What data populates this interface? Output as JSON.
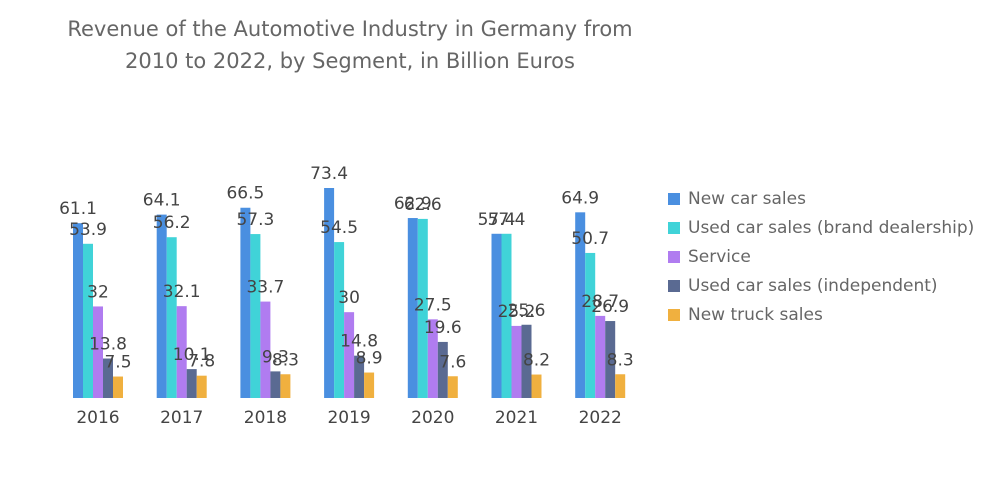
{
  "chart_data": {
    "type": "bar",
    "title": [
      "Revenue of the Automotive Industry in Germany from",
      "2010 to 2022, by Segment, in Billion Euros"
    ],
    "categories": [
      "2016",
      "2017",
      "2018",
      "2019",
      "2020",
      "2021",
      "2022"
    ],
    "series": [
      {
        "name": "New car sales",
        "color": "#4a8fe0",
        "values": [
          61.1,
          64.1,
          66.5,
          73.4,
          62.9,
          57.4,
          64.9
        ]
      },
      {
        "name": "Used car sales (brand dealership)",
        "color": "#40d3d8",
        "values": [
          53.9,
          56.2,
          57.3,
          54.5,
          62.6,
          57.4,
          50.7
        ]
      },
      {
        "name": "Service",
        "color": "#b07cf0",
        "values": [
          32,
          32.1,
          33.7,
          30,
          27.5,
          25.2,
          28.7
        ]
      },
      {
        "name": "Used car sales (independent)",
        "color": "#5a6a92",
        "values": [
          13.8,
          10.1,
          9.3,
          14.8,
          19.6,
          25.6,
          26.9
        ]
      },
      {
        "name": "New truck sales",
        "color": "#f0b03f",
        "values": [
          7.5,
          7.8,
          8.3,
          8.9,
          7.6,
          8.2,
          8.3
        ]
      }
    ],
    "legend": "right"
  }
}
